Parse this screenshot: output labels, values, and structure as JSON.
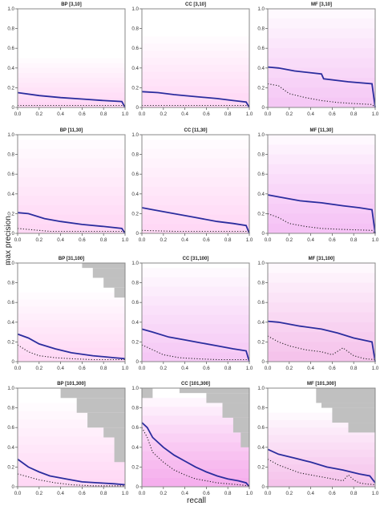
{
  "figure": {
    "ylabel": "max precision",
    "xlabel": "recall",
    "x_ticks": [
      "0.0",
      "0.2",
      "0.4",
      "0.6",
      "0.8",
      "1.0"
    ],
    "y_ticks": [
      "0",
      "0.2",
      "0.4",
      "0.6",
      "0.8",
      "1.0"
    ]
  },
  "colors": {
    "mean_line": "#2b2d9e",
    "baseline": "#222222",
    "band": "#ee66dd",
    "no_data": "#c0c0c0",
    "frame": "#888888"
  },
  "chart_data": [
    {
      "type": "line",
      "title": "BP [3,10]",
      "xlim": [
        0,
        1
      ],
      "ylim": [
        0,
        1
      ],
      "band_height": 0.5,
      "band_alpha": 0.14,
      "no_data": [],
      "series": [
        {
          "kind": "mean",
          "x": [
            0,
            0.2,
            0.4,
            0.6,
            0.8,
            0.97,
            1.0
          ],
          "y": [
            0.15,
            0.12,
            0.1,
            0.085,
            0.07,
            0.06,
            0.0
          ]
        },
        {
          "kind": "baseline",
          "x": [
            0,
            1.0
          ],
          "y": [
            0.02,
            0.02
          ]
        }
      ]
    },
    {
      "type": "line",
      "title": "CC [3,10]",
      "xlim": [
        0,
        1
      ],
      "ylim": [
        0,
        1
      ],
      "band_height": 0.72,
      "band_alpha": 0.14,
      "no_data": [],
      "series": [
        {
          "kind": "mean",
          "x": [
            0,
            0.15,
            0.3,
            0.5,
            0.7,
            0.85,
            0.97,
            1.0
          ],
          "y": [
            0.16,
            0.15,
            0.13,
            0.11,
            0.09,
            0.07,
            0.055,
            0.0
          ]
        },
        {
          "kind": "baseline",
          "x": [
            0,
            1.0
          ],
          "y": [
            0.02,
            0.02
          ]
        }
      ]
    },
    {
      "type": "line",
      "title": "MF [3,10]",
      "xlim": [
        0,
        1
      ],
      "ylim": [
        0,
        1
      ],
      "band_height": 1.0,
      "band_alpha": 0.25,
      "no_data": [],
      "series": [
        {
          "kind": "mean",
          "x": [
            0,
            0.1,
            0.25,
            0.5,
            0.52,
            0.75,
            0.97,
            1.0
          ],
          "y": [
            0.41,
            0.4,
            0.37,
            0.34,
            0.29,
            0.26,
            0.24,
            0.0
          ]
        },
        {
          "kind": "baseline",
          "x": [
            0,
            0.1,
            0.2,
            0.35,
            0.5,
            0.65,
            0.8,
            0.97,
            1.0
          ],
          "y": [
            0.24,
            0.22,
            0.14,
            0.1,
            0.07,
            0.05,
            0.04,
            0.03,
            0.0
          ]
        }
      ]
    },
    {
      "type": "line",
      "title": "BP [11,30]",
      "xlim": [
        0,
        1
      ],
      "ylim": [
        0,
        1
      ],
      "band_height": 0.95,
      "band_alpha": 0.16,
      "no_data": [],
      "series": [
        {
          "kind": "mean",
          "x": [
            0,
            0.1,
            0.25,
            0.4,
            0.6,
            0.8,
            0.97,
            1.0
          ],
          "y": [
            0.21,
            0.2,
            0.15,
            0.12,
            0.09,
            0.07,
            0.05,
            0.0
          ]
        },
        {
          "kind": "baseline",
          "x": [
            0,
            0.1,
            0.3,
            1.0
          ],
          "y": [
            0.05,
            0.04,
            0.02,
            0.02
          ]
        }
      ]
    },
    {
      "type": "line",
      "title": "CC [11,30]",
      "xlim": [
        0,
        1
      ],
      "ylim": [
        0,
        1
      ],
      "band_height": 0.95,
      "band_alpha": 0.18,
      "no_data": [],
      "series": [
        {
          "kind": "mean",
          "x": [
            0,
            0.1,
            0.3,
            0.5,
            0.7,
            0.85,
            0.97,
            1.0
          ],
          "y": [
            0.26,
            0.24,
            0.2,
            0.16,
            0.12,
            0.1,
            0.08,
            0.0
          ]
        },
        {
          "kind": "baseline",
          "x": [
            0,
            0.3,
            1.0
          ],
          "y": [
            0.03,
            0.02,
            0.02
          ]
        }
      ]
    },
    {
      "type": "line",
      "title": "MF [11,30]",
      "xlim": [
        0,
        1
      ],
      "ylim": [
        0,
        1
      ],
      "band_height": 1.0,
      "band_alpha": 0.28,
      "no_data": [],
      "series": [
        {
          "kind": "mean",
          "x": [
            0,
            0.1,
            0.3,
            0.5,
            0.7,
            0.85,
            0.97,
            1.0
          ],
          "y": [
            0.39,
            0.37,
            0.33,
            0.31,
            0.28,
            0.26,
            0.24,
            0.0
          ]
        },
        {
          "kind": "baseline",
          "x": [
            0,
            0.1,
            0.2,
            0.35,
            0.5,
            0.7,
            0.97,
            1.0
          ],
          "y": [
            0.2,
            0.16,
            0.1,
            0.07,
            0.05,
            0.04,
            0.03,
            0.0
          ]
        }
      ]
    },
    {
      "type": "line",
      "title": "BP [31,100]",
      "xlim": [
        0,
        1
      ],
      "ylim": [
        0,
        1
      ],
      "band_height": 0.7,
      "band_alpha": 0.16,
      "no_data": [
        [
          0.6,
          1.0,
          0.95,
          1.0
        ],
        [
          0.7,
          1.0,
          0.85,
          0.95
        ],
        [
          0.8,
          1.0,
          0.75,
          0.85
        ],
        [
          0.9,
          1.0,
          0.65,
          0.75
        ]
      ],
      "series": [
        {
          "kind": "mean",
          "x": [
            0,
            0.1,
            0.2,
            0.35,
            0.5,
            0.7,
            0.9,
            1.0
          ],
          "y": [
            0.28,
            0.24,
            0.18,
            0.13,
            0.09,
            0.06,
            0.04,
            0.03
          ]
        },
        {
          "kind": "baseline",
          "x": [
            0,
            0.1,
            0.2,
            0.35,
            0.5,
            0.7,
            1.0
          ],
          "y": [
            0.17,
            0.1,
            0.06,
            0.04,
            0.03,
            0.02,
            0.02
          ]
        }
      ]
    },
    {
      "type": "line",
      "title": "CC [31,100]",
      "xlim": [
        0,
        1
      ],
      "ylim": [
        0,
        1
      ],
      "band_height": 0.95,
      "band_alpha": 0.25,
      "no_data": [],
      "series": [
        {
          "kind": "mean",
          "x": [
            0,
            0.1,
            0.25,
            0.4,
            0.55,
            0.7,
            0.85,
            0.97,
            1.0
          ],
          "y": [
            0.33,
            0.3,
            0.25,
            0.22,
            0.19,
            0.16,
            0.13,
            0.11,
            0.0
          ]
        },
        {
          "kind": "baseline",
          "x": [
            0,
            0.1,
            0.2,
            0.35,
            0.5,
            0.7,
            1.0
          ],
          "y": [
            0.17,
            0.12,
            0.07,
            0.04,
            0.03,
            0.02,
            0.02
          ]
        }
      ]
    },
    {
      "type": "line",
      "title": "MF [31,100]",
      "xlim": [
        0,
        1
      ],
      "ylim": [
        0,
        1
      ],
      "band_height": 1.0,
      "band_alpha": 0.3,
      "no_data": [],
      "series": [
        {
          "kind": "mean",
          "x": [
            0,
            0.1,
            0.3,
            0.5,
            0.65,
            0.8,
            0.97,
            1.0
          ],
          "y": [
            0.41,
            0.4,
            0.36,
            0.33,
            0.29,
            0.24,
            0.2,
            0.0
          ]
        },
        {
          "kind": "baseline",
          "x": [
            0,
            0.1,
            0.2,
            0.35,
            0.5,
            0.6,
            0.7,
            0.8,
            0.9,
            1.0
          ],
          "y": [
            0.26,
            0.2,
            0.16,
            0.12,
            0.1,
            0.07,
            0.14,
            0.06,
            0.03,
            0.02
          ]
        }
      ]
    },
    {
      "type": "line",
      "title": "BP [101,300]",
      "xlim": [
        0,
        1
      ],
      "ylim": [
        0,
        1
      ],
      "band_height": 0.85,
      "band_alpha": 0.18,
      "no_data": [
        [
          0.4,
          1.0,
          0.9,
          1.0
        ],
        [
          0.55,
          1.0,
          0.75,
          0.9
        ],
        [
          0.65,
          1.0,
          0.6,
          0.75
        ],
        [
          0.8,
          1.0,
          0.5,
          0.6
        ],
        [
          0.9,
          1.0,
          0.25,
          0.5
        ]
      ],
      "series": [
        {
          "kind": "mean",
          "x": [
            0,
            0.05,
            0.1,
            0.2,
            0.3,
            0.45,
            0.6,
            0.75,
            0.9,
            1.0
          ],
          "y": [
            0.28,
            0.24,
            0.2,
            0.15,
            0.11,
            0.08,
            0.05,
            0.04,
            0.03,
            0.02
          ]
        },
        {
          "kind": "baseline",
          "x": [
            0,
            0.1,
            0.2,
            0.35,
            0.5,
            0.7,
            1.0
          ],
          "y": [
            0.13,
            0.1,
            0.07,
            0.04,
            0.02,
            0.01,
            0.01
          ]
        }
      ]
    },
    {
      "type": "line",
      "title": "CC [101,300]",
      "xlim": [
        0,
        1
      ],
      "ylim": [
        0,
        1
      ],
      "band_height": 0.9,
      "band_alpha": 0.4,
      "no_data": [
        [
          0.0,
          0.1,
          0.9,
          1.0
        ],
        [
          0.35,
          1.0,
          0.95,
          1.0
        ],
        [
          0.6,
          1.0,
          0.85,
          0.95
        ],
        [
          0.75,
          1.0,
          0.7,
          0.85
        ],
        [
          0.85,
          1.0,
          0.55,
          0.7
        ],
        [
          0.92,
          1.0,
          0.4,
          0.55
        ]
      ],
      "series": [
        {
          "kind": "mean",
          "x": [
            0,
            0.05,
            0.1,
            0.2,
            0.3,
            0.4,
            0.5,
            0.6,
            0.7,
            0.8,
            0.9,
            0.97,
            1.0
          ],
          "y": [
            0.65,
            0.6,
            0.5,
            0.4,
            0.32,
            0.26,
            0.2,
            0.15,
            0.11,
            0.08,
            0.06,
            0.04,
            0.0
          ]
        },
        {
          "kind": "baseline",
          "x": [
            0,
            0.05,
            0.1,
            0.2,
            0.3,
            0.4,
            0.5,
            0.6,
            0.7,
            0.8,
            0.9,
            1.0
          ],
          "y": [
            0.6,
            0.5,
            0.35,
            0.25,
            0.17,
            0.12,
            0.08,
            0.06,
            0.04,
            0.03,
            0.02,
            0.01
          ]
        }
      ]
    },
    {
      "type": "line",
      "title": "MF [101,300]",
      "xlim": [
        0,
        1
      ],
      "ylim": [
        0,
        1
      ],
      "band_height": 0.75,
      "band_alpha": 0.3,
      "no_data": [
        [
          0.45,
          1.0,
          0.85,
          1.0
        ],
        [
          0.5,
          1.0,
          0.8,
          0.85
        ],
        [
          0.6,
          1.0,
          0.65,
          0.8
        ],
        [
          0.75,
          1.0,
          0.55,
          0.65
        ]
      ],
      "series": [
        {
          "kind": "mean",
          "x": [
            0,
            0.1,
            0.25,
            0.4,
            0.55,
            0.7,
            0.85,
            0.95,
            1.0
          ],
          "y": [
            0.38,
            0.33,
            0.29,
            0.25,
            0.2,
            0.17,
            0.13,
            0.11,
            0.04
          ]
        },
        {
          "kind": "baseline",
          "x": [
            0,
            0.1,
            0.2,
            0.3,
            0.5,
            0.7,
            0.75,
            0.8,
            0.85,
            0.9,
            1.0
          ],
          "y": [
            0.28,
            0.22,
            0.18,
            0.14,
            0.1,
            0.06,
            0.12,
            0.07,
            0.04,
            0.03,
            0.02
          ]
        }
      ]
    }
  ]
}
